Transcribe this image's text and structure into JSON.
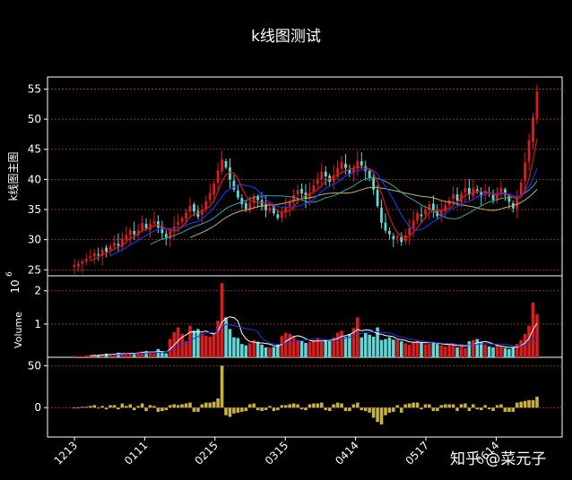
{
  "title": "k线图测试",
  "watermark": "知乎 @菜元子",
  "colors": {
    "background": "#000000",
    "grid": "#c0392b",
    "up": "#e01b1b",
    "down": "#5fd8d8",
    "ma_red": "#d11a1a",
    "ma_blue": "#1f2ee8",
    "ma_cyan": "#2aa9a9",
    "ma_yellow": "#c8b35a",
    "vol_line_white": "#ffffff",
    "vol_line_blue": "#2233ee",
    "macd_bar": "#c9b23a"
  },
  "chart_data": [
    {
      "type": "candlestick",
      "panel": "main",
      "ylabel": "k线图主图",
      "ylim": [
        24,
        57
      ],
      "yticks": [
        25,
        30,
        35,
        40,
        45,
        50,
        55
      ],
      "xticks": [
        "1213",
        "0111",
        "0215",
        "0315",
        "0414",
        "0517",
        "0614"
      ],
      "grid": true,
      "close": [
        25.8,
        26.0,
        26.4,
        26.8,
        27.2,
        27.8,
        27.5,
        28.4,
        28.0,
        28.9,
        29.5,
        29.0,
        30.2,
        30.8,
        31.6,
        30.9,
        31.5,
        32.8,
        31.9,
        32.6,
        33.1,
        32.0,
        31.1,
        30.4,
        31.4,
        32.2,
        32.9,
        33.6,
        34.5,
        35.6,
        34.7,
        33.8,
        35.0,
        36.4,
        37.8,
        39.3,
        41.5,
        43.3,
        42.0,
        40.0,
        38.3,
        37.0,
        35.9,
        35.1,
        36.1,
        37.3,
        36.6,
        35.6,
        34.9,
        35.3,
        34.4,
        33.6,
        34.5,
        35.4,
        36.3,
        37.4,
        38.2,
        37.7,
        36.8,
        37.8,
        39.0,
        40.1,
        41.3,
        40.5,
        39.6,
        40.7,
        41.9,
        42.9,
        41.9,
        40.9,
        41.9,
        43.1,
        42.3,
        41.4,
        40.2,
        38.3,
        35.6,
        32.8,
        31.5,
        30.9,
        30.1,
        30.6,
        29.6,
        30.7,
        31.9,
        33.2,
        34.4,
        33.9,
        35.0,
        35.9,
        34.9,
        33.9,
        34.8,
        35.7,
        36.6,
        37.5,
        36.5,
        37.6,
        38.6,
        37.5,
        38.5,
        38.0,
        37.2,
        38.1,
        37.6,
        36.6,
        37.6,
        38.6,
        37.4,
        36.3,
        35.2,
        37.0,
        39.5,
        42.8,
        46.5,
        50.3,
        54.6
      ],
      "volume": {
        "ylabel": "Volume",
        "exponent": "10^6",
        "ylim": [
          0,
          2.45
        ],
        "yticks": [
          1,
          2
        ],
        "values": [
          0.04,
          0.03,
          0.03,
          0.05,
          0.07,
          0.08,
          0.06,
          0.09,
          0.11,
          0.08,
          0.12,
          0.14,
          0.1,
          0.11,
          0.13,
          0.12,
          0.16,
          0.18,
          0.19,
          0.14,
          0.12,
          0.25,
          0.17,
          0.12,
          0.55,
          0.75,
          0.9,
          0.7,
          0.48,
          0.95,
          0.8,
          0.85,
          0.72,
          0.65,
          0.62,
          0.7,
          1.1,
          2.23,
          1.2,
          0.85,
          0.6,
          0.58,
          0.4,
          0.36,
          0.42,
          0.52,
          0.47,
          0.38,
          0.3,
          0.29,
          0.31,
          0.4,
          0.64,
          0.74,
          0.7,
          0.64,
          0.52,
          0.49,
          0.43,
          0.46,
          0.52,
          0.57,
          0.47,
          0.5,
          0.52,
          0.59,
          0.74,
          0.8,
          0.62,
          0.69,
          0.88,
          1.2,
          0.6,
          0.75,
          0.68,
          0.62,
          0.9,
          0.52,
          0.55,
          0.6,
          0.53,
          0.51,
          0.48,
          0.42,
          0.38,
          0.47,
          0.52,
          0.44,
          0.39,
          0.42,
          0.46,
          0.4,
          0.36,
          0.33,
          0.37,
          0.42,
          0.3,
          0.35,
          0.28,
          0.48,
          0.52,
          0.55,
          0.45,
          0.38,
          0.33,
          0.3,
          0.35,
          0.32,
          0.28,
          0.25,
          0.3,
          0.4,
          0.52,
          0.7,
          0.95,
          1.65,
          1.3
        ]
      },
      "indicator": {
        "type": "bar",
        "ylim": [
          -35,
          60
        ],
        "yticks": [
          0,
          50
        ],
        "values": [
          0,
          0,
          1,
          1,
          2,
          3,
          -1,
          2,
          -2,
          3,
          3,
          -2,
          5,
          2,
          4,
          -3,
          2,
          5,
          -4,
          3,
          2,
          -5,
          -4,
          -3,
          3,
          4,
          3,
          4,
          5,
          6,
          -5,
          -5,
          4,
          6,
          6,
          7,
          11,
          50,
          -9,
          -11,
          -7,
          -6,
          -5,
          -4,
          4,
          5,
          -3,
          -4,
          -3,
          2,
          -4,
          -3,
          3,
          3,
          4,
          5,
          4,
          -2,
          -3,
          4,
          5,
          5,
          6,
          -3,
          -4,
          4,
          6,
          5,
          -4,
          -4,
          4,
          6,
          -3,
          -4,
          -6,
          -12,
          -17,
          -20,
          -9,
          -6,
          -5,
          3,
          -6,
          4,
          5,
          6,
          6,
          -2,
          4,
          4,
          -4,
          -4,
          3,
          4,
          4,
          4,
          -4,
          4,
          5,
          -4,
          4,
          -2,
          -3,
          3,
          -2,
          -4,
          3,
          4,
          -5,
          -5,
          -5,
          6,
          7,
          8,
          9,
          9,
          13
        ]
      }
    }
  ]
}
